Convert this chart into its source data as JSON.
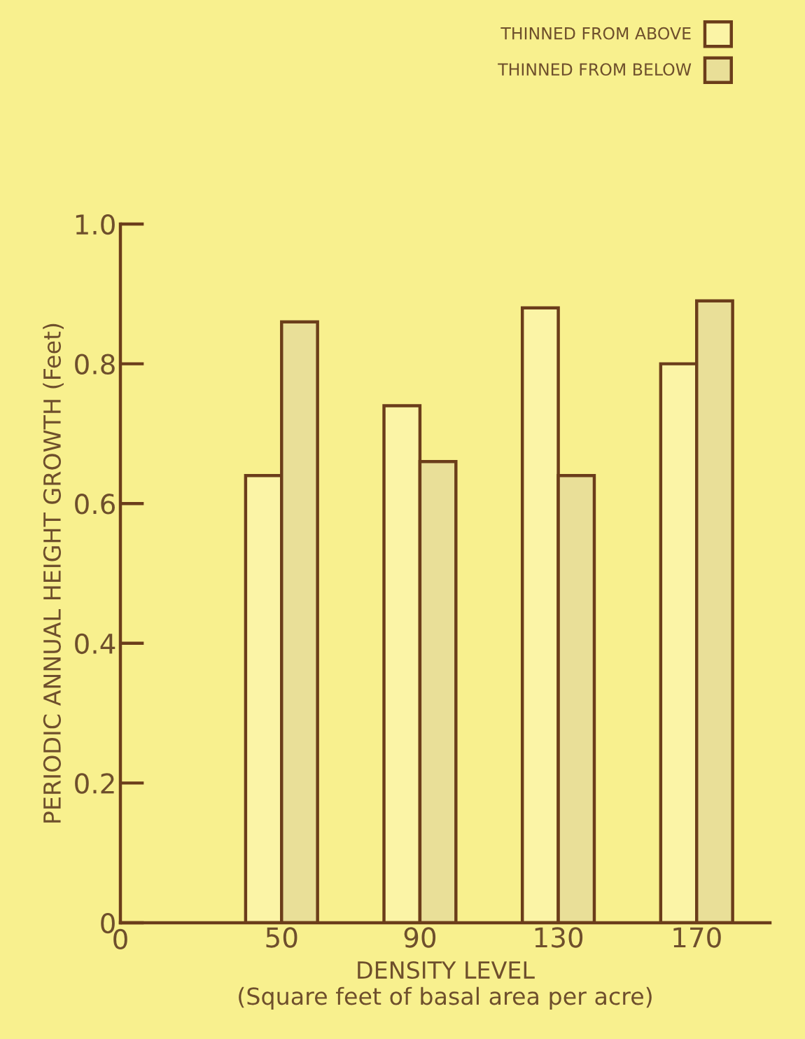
{
  "chart_data": {
    "type": "bar",
    "xlabel": "DENSITY LEVEL\n(Square feet of basal area per acre)",
    "ylabel": "PERIODIC ANNUAL HEIGHT GROWTH (Feet)",
    "categories": [
      "50",
      "90",
      "130",
      "170"
    ],
    "series": [
      {
        "name": "THINNED FROM ABOVE",
        "color": "#fbf4a6",
        "values": [
          0.64,
          0.74,
          0.88,
          0.8
        ]
      },
      {
        "name": "THINNED FROM BELOW",
        "color": "#e9df98",
        "values": [
          0.86,
          0.66,
          0.64,
          0.89
        ]
      }
    ],
    "ylim": [
      0,
      1.0
    ],
    "yticks": [
      0,
      0.2,
      0.4,
      0.6,
      0.8,
      {
        "value": 1,
        "label": "1.0"
      }
    ],
    "grid": false,
    "legend": "top right",
    "annotations": [
      "0"
    ]
  }
}
